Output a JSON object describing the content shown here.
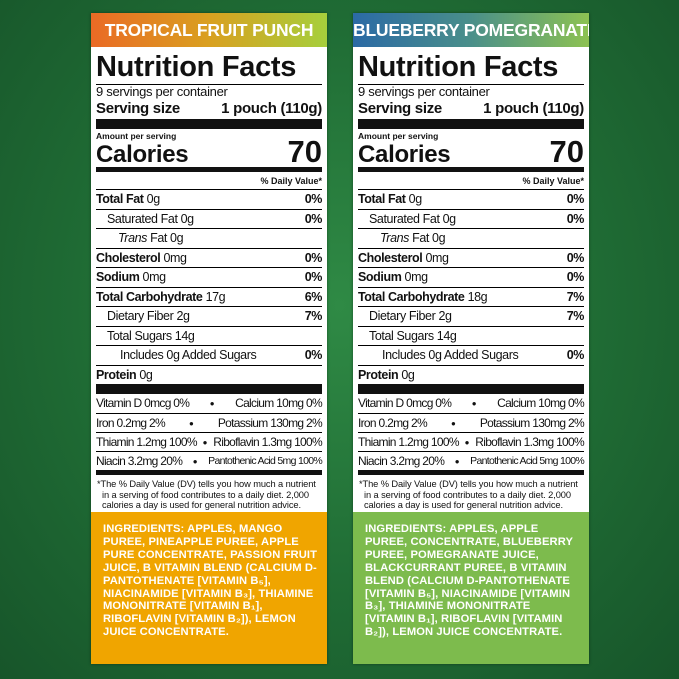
{
  "colors": {
    "background": "#1f6b34",
    "tropical_header": [
      "#ea6a25",
      "#d9a020",
      "#a6cf3c"
    ],
    "blueberry_header": [
      "#2b6aa5",
      "#4a8f8a",
      "#8dc252"
    ],
    "tropical_ingredients_bg": "#f0a500",
    "blueberry_ingredients_bg": "#7dbb4d"
  },
  "panels": [
    {
      "flavor": "TROPICAL FRUIT PUNCH",
      "title": "Nutrition Facts",
      "servings": "9 servings per container",
      "serving_size_label": "Serving size",
      "serving_size_value": "1 pouch (110g)",
      "amount_per_serving": "Amount per serving",
      "calories_label": "Calories",
      "calories_value": "70",
      "dv_header": "% Daily Value*",
      "nutrients": [
        {
          "name": "Total Fat",
          "amount": "0g",
          "dv": "0%",
          "bold": true,
          "indent": 0
        },
        {
          "name": "Saturated Fat",
          "amount": "0g",
          "dv": "0%",
          "bold": false,
          "indent": 1
        },
        {
          "name": "Trans",
          "amount": "Fat 0g",
          "dv": "",
          "bold": false,
          "indent": 2,
          "italic": true
        },
        {
          "name": "Cholesterol",
          "amount": "0mg",
          "dv": "0%",
          "bold": true,
          "indent": 0
        },
        {
          "name": "Sodium",
          "amount": "0mg",
          "dv": "0%",
          "bold": true,
          "indent": 0
        },
        {
          "name": "Total Carbohydrate",
          "amount": "17g",
          "dv": "6%",
          "bold": true,
          "indent": 0
        },
        {
          "name": "Dietary Fiber",
          "amount": "2g",
          "dv": "7%",
          "bold": false,
          "indent": 1
        },
        {
          "name": "Total Sugars",
          "amount": "14g",
          "dv": "",
          "bold": false,
          "indent": 1
        },
        {
          "name": "Includes 0g Added Sugars",
          "amount": "",
          "dv": "0%",
          "bold": false,
          "indent": 3
        },
        {
          "name": "Protein",
          "amount": "0g",
          "dv": "",
          "bold": true,
          "indent": 0
        }
      ],
      "vitamins": [
        [
          "Vitamin D 0mcg 0%",
          "Calcium 10mg 0%"
        ],
        [
          "Iron 0.2mg 2%",
          "Potassium 130mg 2%"
        ],
        [
          "Thiamin 1.2mg 100%",
          "Riboflavin 1.3mg 100%"
        ],
        [
          "Niacin 3.2mg 20%",
          "Pantothenic Acid 5mg 100%"
        ]
      ],
      "footnote": "*The % Daily Value (DV) tells you how much a nutrient in a serving of food contributes to a daily diet. 2,000 calories a day is used for general nutrition advice.",
      "ingredients": "INGREDIENTS: APPLES, MANGO PUREE, PINEAPPLE PUREE, APPLE PURE CONCENTRATE, PASSION FRUIT JUICE, B VITAMIN BLEND (CALCIUM D-PANTOTHENATE [VITAMIN B₅], NIACINAMIDE [VITAMIN B₃], THIAMINE MONONITRATE [VITAMIN B₁], RIBOFLAVIN [VITAMIN B₂]), LEMON JUICE CONCENTRATE."
    },
    {
      "flavor": "BLUEBERRY POMEGRANATE",
      "title": "Nutrition Facts",
      "servings": "9 servings per container",
      "serving_size_label": "Serving size",
      "serving_size_value": "1 pouch (110g)",
      "amount_per_serving": "Amount per serving",
      "calories_label": "Calories",
      "calories_value": "70",
      "dv_header": "% Daily Value*",
      "nutrients": [
        {
          "name": "Total Fat",
          "amount": "0g",
          "dv": "0%",
          "bold": true,
          "indent": 0
        },
        {
          "name": "Saturated Fat",
          "amount": "0g",
          "dv": "0%",
          "bold": false,
          "indent": 1
        },
        {
          "name": "Trans",
          "amount": "Fat 0g",
          "dv": "",
          "bold": false,
          "indent": 2,
          "italic": true
        },
        {
          "name": "Cholesterol",
          "amount": "0mg",
          "dv": "0%",
          "bold": true,
          "indent": 0
        },
        {
          "name": "Sodium",
          "amount": "0mg",
          "dv": "0%",
          "bold": true,
          "indent": 0
        },
        {
          "name": "Total Carbohydrate",
          "amount": "18g",
          "dv": "7%",
          "bold": true,
          "indent": 0
        },
        {
          "name": "Dietary Fiber",
          "amount": "2g",
          "dv": "7%",
          "bold": false,
          "indent": 1
        },
        {
          "name": "Total Sugars",
          "amount": "14g",
          "dv": "",
          "bold": false,
          "indent": 1
        },
        {
          "name": "Includes 0g Added Sugars",
          "amount": "",
          "dv": "0%",
          "bold": false,
          "indent": 3
        },
        {
          "name": "Protein",
          "amount": "0g",
          "dv": "",
          "bold": true,
          "indent": 0
        }
      ],
      "vitamins": [
        [
          "Vitamin D 0mcg 0%",
          "Calcium 10mg 0%"
        ],
        [
          "Iron 0.2mg 2%",
          "Potassium 130mg 2%"
        ],
        [
          "Thiamin 1.2mg 100%",
          "Riboflavin 1.3mg 100%"
        ],
        [
          "Niacin 3.2mg 20%",
          "Pantothenic Acid 5mg 100%"
        ]
      ],
      "footnote": "*The % Daily Value (DV) tells you how much a nutrient in a serving of food contributes to a daily diet. 2,000 calories a day is used for general nutrition advice.",
      "ingredients": "INGREDIENTS: APPLES, APPLE PUREE, CONCENTRATE, BLUEBERRY PUREE, POMEGRANATE JUICE, BLACKCURRANT PUREE, B VITAMIN BLEND (CALCIUM D-PANTOTHENATE [VITAMIN B₅], NIACINAMIDE [VITAMIN B₃], THIAMINE MONONITRATE [VITAMIN B₁], RIBOFLAVIN [VITAMIN B₂]), LEMON JUICE CONCENTRATE."
    }
  ]
}
